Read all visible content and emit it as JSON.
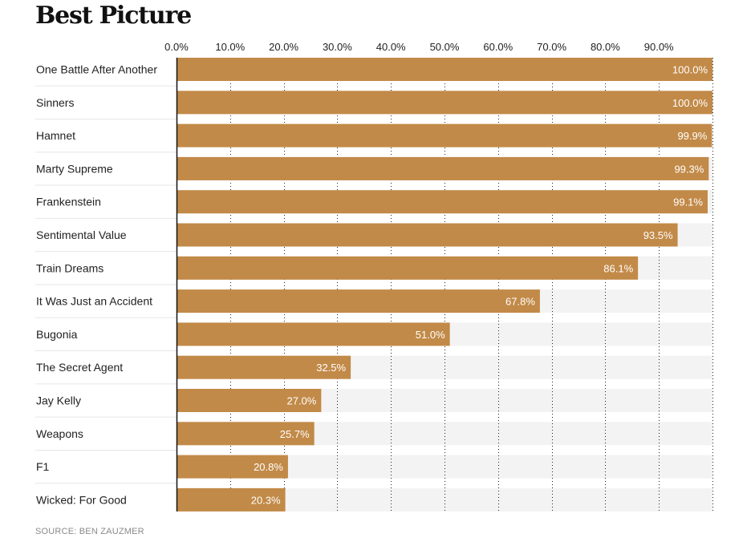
{
  "chart_data": {
    "type": "bar",
    "orientation": "horizontal",
    "title": "Best Picture",
    "categories": [
      "One Battle After Another",
      "Sinners",
      "Hamnet",
      "Marty Supreme",
      "Frankenstein",
      "Sentimental Value",
      "Train Dreams",
      "It Was Just an Accident",
      "Bugonia",
      "The Secret Agent",
      "Jay Kelly",
      "Weapons",
      "F1",
      "Wicked: For Good"
    ],
    "values": [
      100.0,
      100.0,
      99.9,
      99.3,
      99.1,
      93.5,
      86.1,
      67.8,
      51.0,
      32.5,
      27.0,
      25.7,
      20.8,
      20.3
    ],
    "value_labels": [
      "100.0%",
      "100.0%",
      "99.9%",
      "99.3%",
      "99.1%",
      "93.5%",
      "86.1%",
      "67.8%",
      "51.0%",
      "32.5%",
      "27.0%",
      "25.7%",
      "20.8%",
      "20.3%"
    ],
    "xticks": [
      0,
      10,
      20,
      30,
      40,
      50,
      60,
      70,
      80,
      90
    ],
    "xtick_labels": [
      "0.0%",
      "10.0%",
      "20.0%",
      "30.0%",
      "40.0%",
      "50.0%",
      "60.0%",
      "70.0%",
      "80.0%",
      "90.0%"
    ],
    "xlim": [
      0,
      100
    ],
    "xaxis_position": "top",
    "grid": true,
    "bar_color": "#c28a48",
    "track_color": "#f3f3f3",
    "label_color": "#ffffff"
  },
  "source": "SOURCE: BEN ZAUZMER"
}
